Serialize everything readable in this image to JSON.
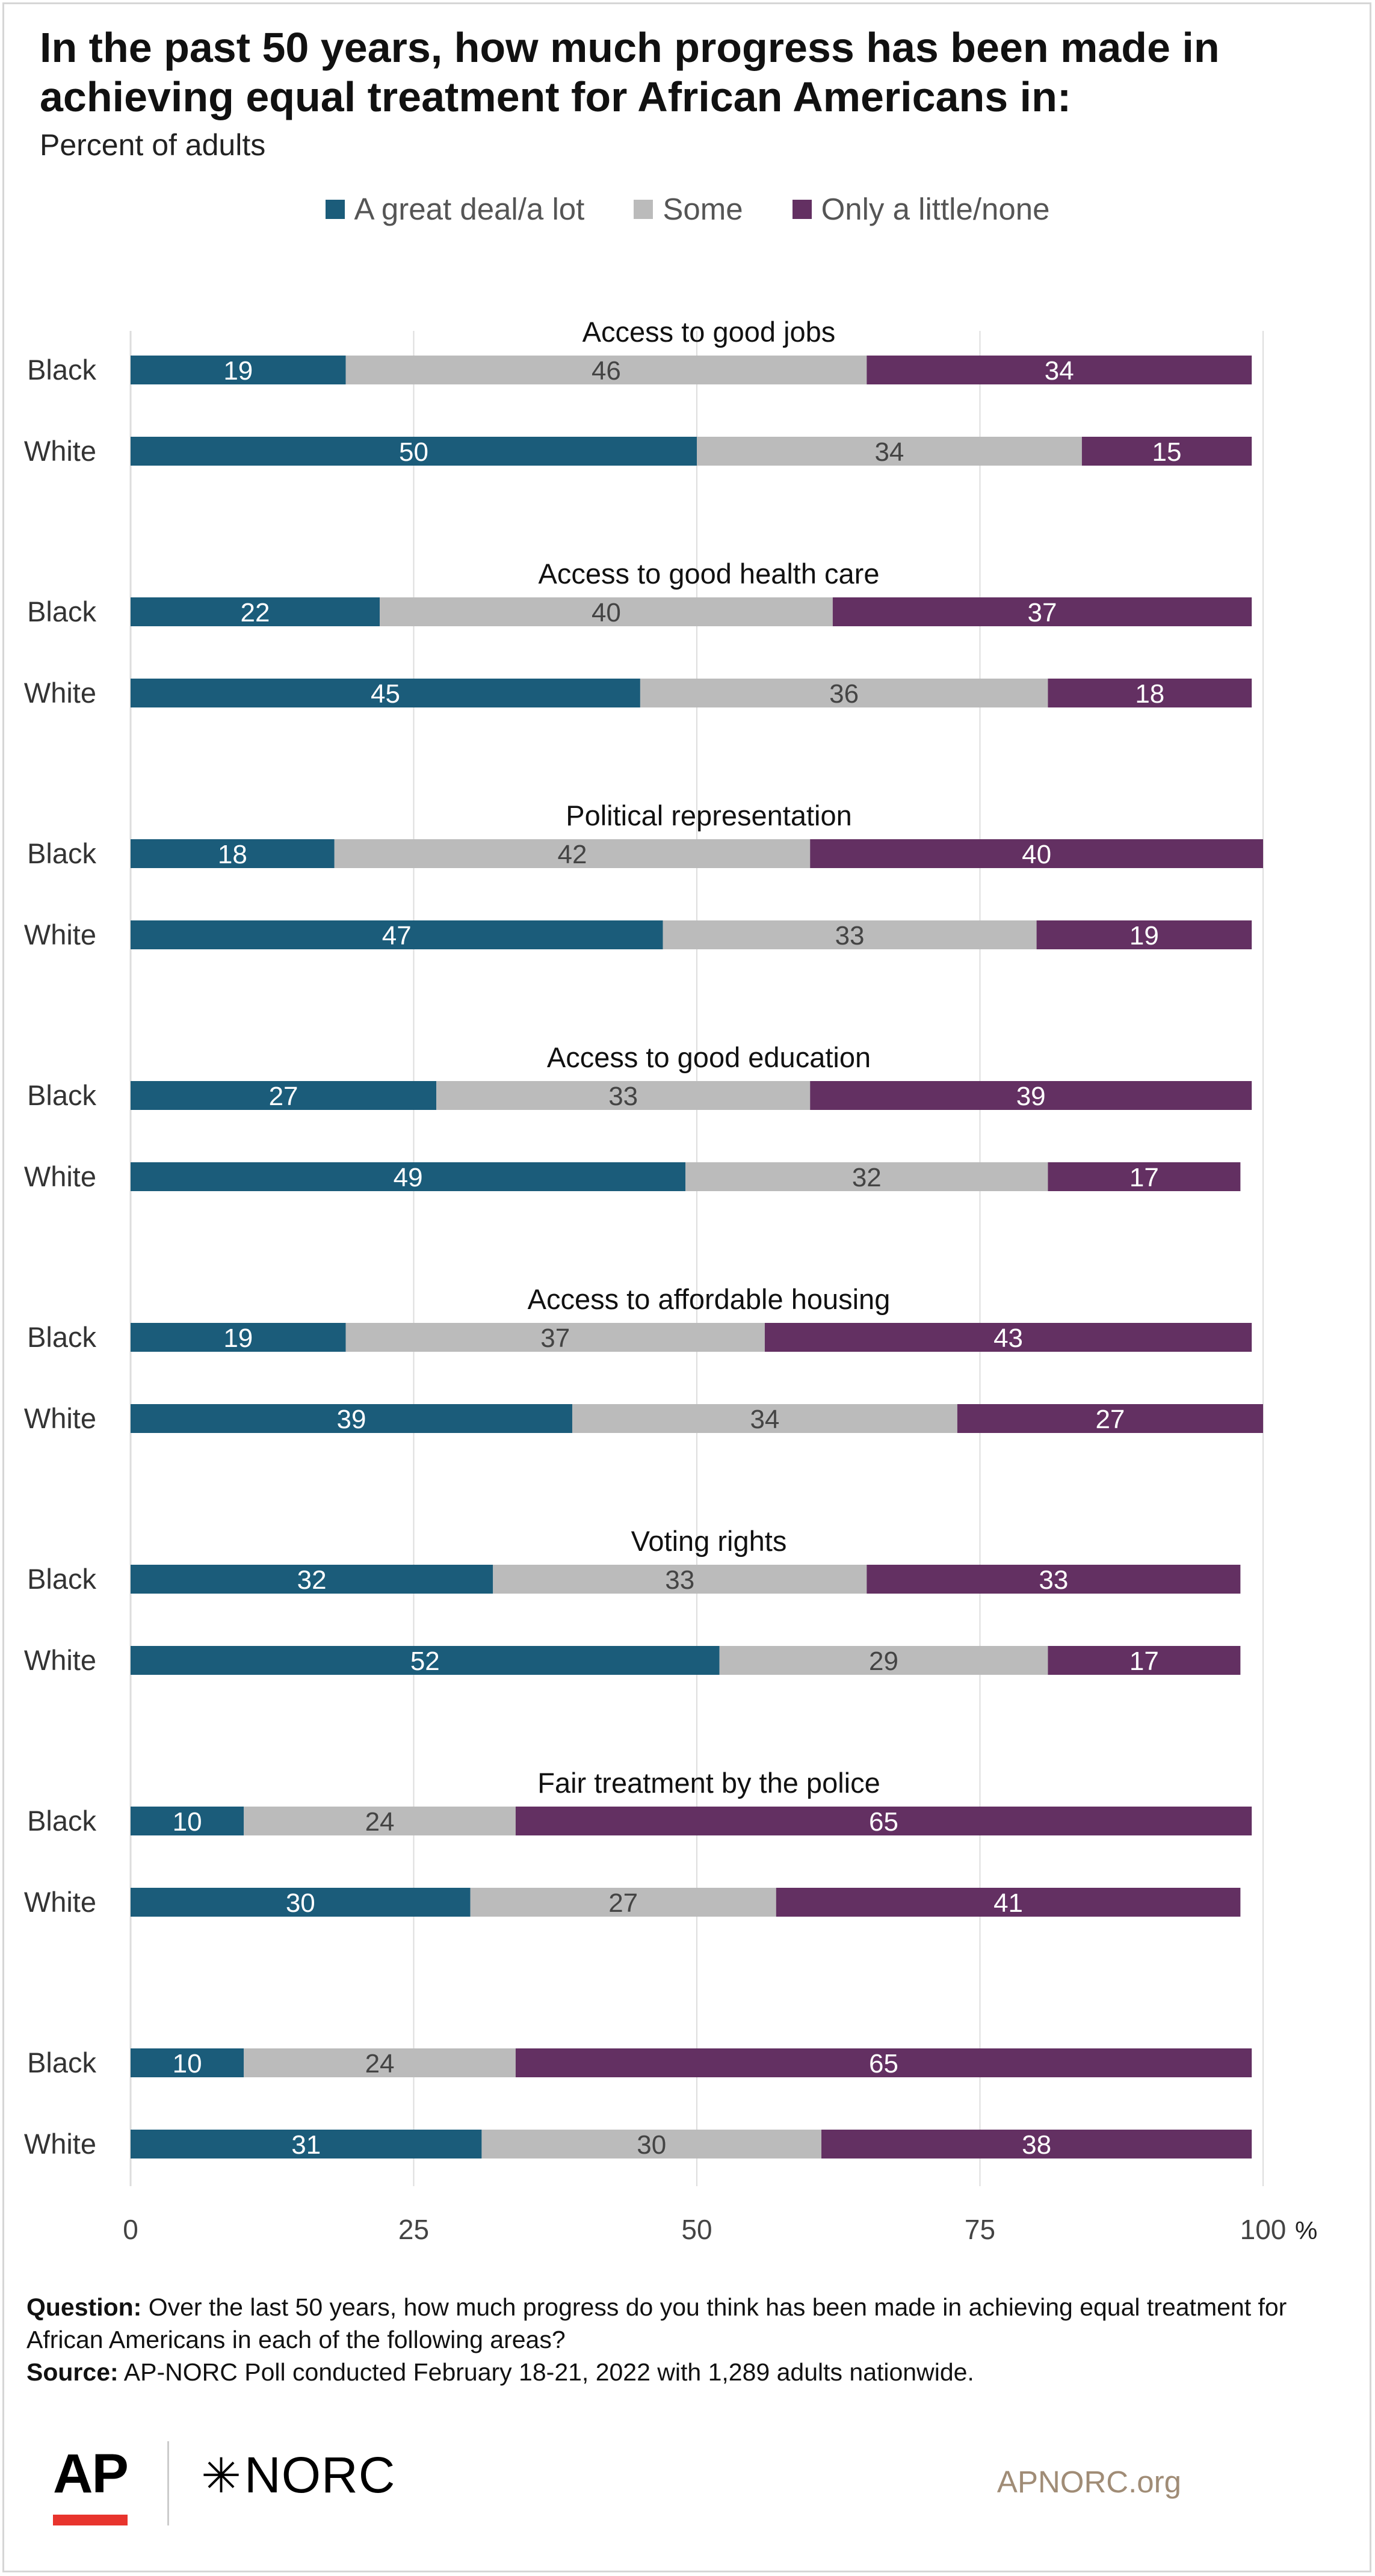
{
  "title": "In the past 50 years, how much progress has been made in achieving equal treatment for African Americans in:",
  "subtitle": "Percent of adults",
  "colors": {
    "great": "#1b5c7a",
    "some": "#bbbbbb",
    "little": "#633062",
    "grid": "#dddddd",
    "axis": "#444444"
  },
  "chart_data": {
    "type": "bar",
    "orientation": "horizontal",
    "stacked": true,
    "legend_position": "top",
    "xlim": [
      0,
      100
    ],
    "x_ticks": [
      "0",
      "25",
      "50",
      "75",
      "100"
    ],
    "x_unit": "%",
    "series": [
      {
        "name": "A great deal/a lot",
        "color": "#1b5c7a"
      },
      {
        "name": "Some",
        "color": "#bbbbbb"
      },
      {
        "name": "Only a little/none",
        "color": "#633062"
      }
    ],
    "groups": [
      {
        "title": "Access to good jobs",
        "rows": [
          {
            "label": "Black",
            "values": [
              19,
              46,
              34
            ]
          },
          {
            "label": "White",
            "values": [
              50,
              34,
              15
            ]
          }
        ]
      },
      {
        "title": "Access to good health care",
        "rows": [
          {
            "label": "Black",
            "values": [
              22,
              40,
              37
            ]
          },
          {
            "label": "White",
            "values": [
              45,
              36,
              18
            ]
          }
        ]
      },
      {
        "title": "Political representation",
        "rows": [
          {
            "label": "Black",
            "values": [
              18,
              42,
              40
            ]
          },
          {
            "label": "White",
            "values": [
              47,
              33,
              19
            ]
          }
        ]
      },
      {
        "title": "Access to good education",
        "rows": [
          {
            "label": "Black",
            "values": [
              27,
              33,
              39
            ]
          },
          {
            "label": "White",
            "values": [
              49,
              32,
              17
            ]
          }
        ]
      },
      {
        "title": "Access to affordable housing",
        "rows": [
          {
            "label": "Black",
            "values": [
              19,
              37,
              43
            ]
          },
          {
            "label": "White",
            "values": [
              39,
              34,
              27
            ]
          }
        ]
      },
      {
        "title": "Voting rights",
        "rows": [
          {
            "label": "Black",
            "values": [
              32,
              33,
              33
            ]
          },
          {
            "label": "White",
            "values": [
              52,
              29,
              17
            ]
          }
        ]
      },
      {
        "title": "Fair treatment by the police",
        "rows": [
          {
            "label": "Black",
            "values": [
              10,
              24,
              65
            ]
          },
          {
            "label": "White",
            "values": [
              30,
              27,
              41
            ]
          }
        ]
      },
      {
        "title": "",
        "rows": [
          {
            "label": "Black",
            "values": [
              10,
              24,
              65
            ]
          },
          {
            "label": "White",
            "values": [
              31,
              30,
              38
            ]
          }
        ]
      }
    ]
  },
  "footer": {
    "question_label": "Question:",
    "question_text": "Over the last 50 years, how much progress do you think has been made in achieving equal treatment for African Americans in each of the following areas?",
    "source_label": "Source:",
    "source_text": "AP-NORC Poll conducted February 18-21, 2022 with 1,289 adults nationwide."
  },
  "logos": {
    "ap": "AP",
    "norc": "NORC",
    "norc_icon": "asterisk-star-icon",
    "site": "APNORC.org"
  }
}
